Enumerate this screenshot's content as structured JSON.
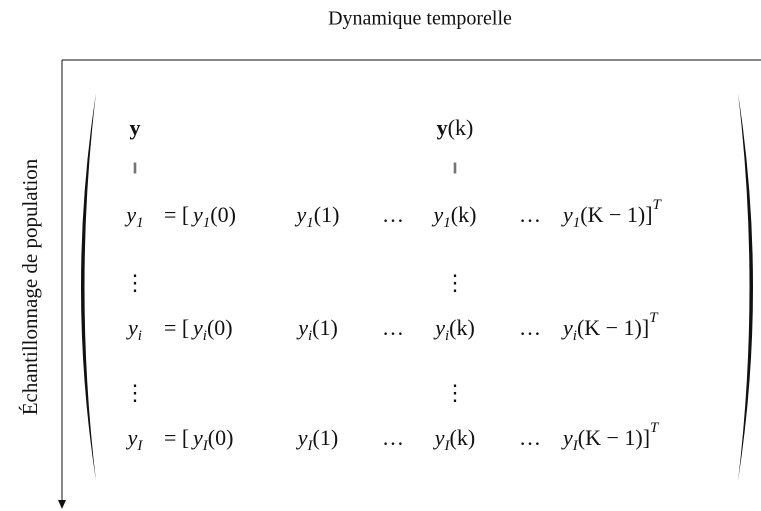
{
  "title": "Dynamique temporelle",
  "side_label": "Échantillonnage de population",
  "matrix": {
    "header": [
      {
        "bold": "y"
      },
      {
        "bold": "y",
        "arg": "(k)"
      }
    ],
    "equals_marks": [
      "‖",
      "‖"
    ],
    "rows": [
      {
        "label": {
          "base": "y",
          "sub": "1"
        },
        "open": "= [",
        "close": "]",
        "close_sup": "T",
        "entries": [
          {
            "base": "y",
            "sub": "1",
            "arg": "(0)"
          },
          {
            "base": "y",
            "sub": "1",
            "arg": "(1)"
          },
          {
            "text": "…"
          },
          {
            "base": "y",
            "sub": "1",
            "arg": "(k)"
          },
          {
            "text": "…"
          },
          {
            "base": "y",
            "sub": "1",
            "arg": "(K − 1)"
          }
        ]
      },
      {
        "vdots": [
          "⋮",
          "⋮"
        ]
      },
      {
        "label": {
          "base": "y",
          "sub": "i"
        },
        "open": "= [",
        "close": "]",
        "close_sup": "T",
        "entries": [
          {
            "base": "y",
            "sub": "i",
            "arg": "(0)"
          },
          {
            "base": "y",
            "sub": "i",
            "arg": "(1)"
          },
          {
            "text": "…"
          },
          {
            "base": "y",
            "sub": "i",
            "arg": "(k)"
          },
          {
            "text": "…"
          },
          {
            "base": "y",
            "sub": "i",
            "arg": "(K − 1)"
          }
        ]
      },
      {
        "vdots": [
          "⋮",
          "⋮"
        ]
      },
      {
        "label": {
          "base": "y",
          "sub": "I"
        },
        "open": "= [",
        "close": "]",
        "close_sup": "T",
        "entries": [
          {
            "base": "y",
            "sub": "I",
            "arg": "(0)"
          },
          {
            "base": "y",
            "sub": "I",
            "arg": "(1)"
          },
          {
            "text": "…"
          },
          {
            "base": "y",
            "sub": "I",
            "arg": "(k)"
          },
          {
            "text": "…"
          },
          {
            "base": "y",
            "sub": "I",
            "arg": "(K − 1)"
          }
        ]
      }
    ]
  }
}
